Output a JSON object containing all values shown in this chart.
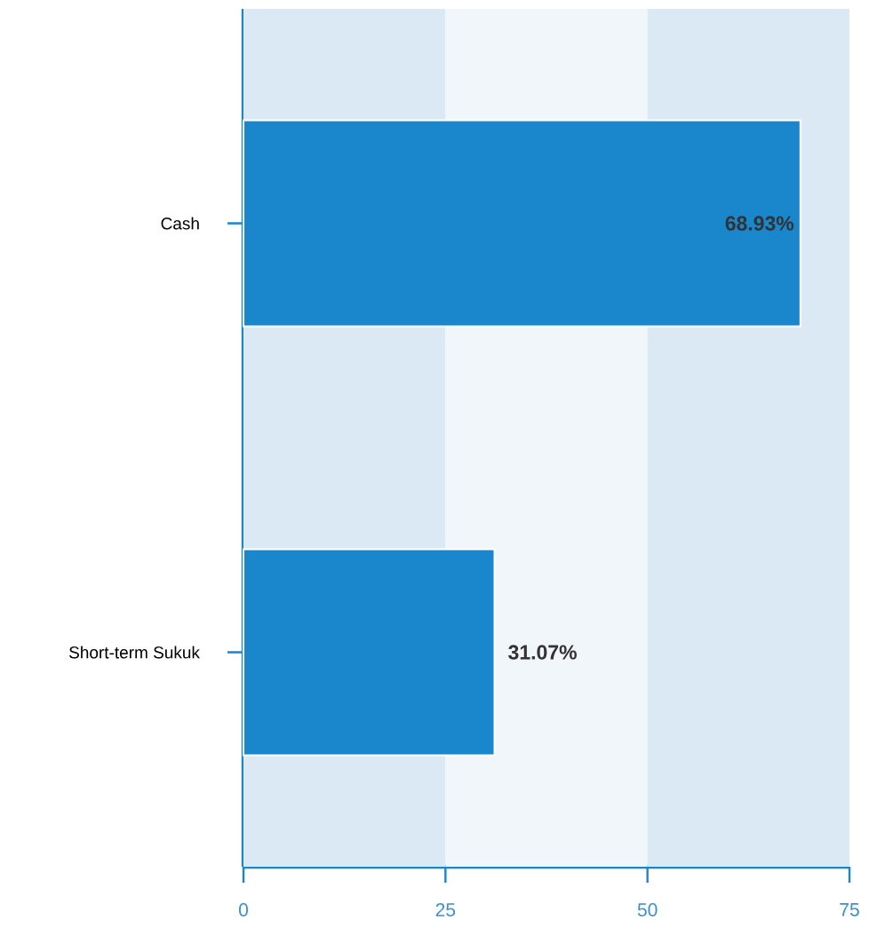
{
  "chart_data": {
    "type": "bar",
    "orientation": "horizontal",
    "categories": [
      "Cash",
      "Short-term Sukuk"
    ],
    "values": [
      68.93,
      31.07
    ],
    "value_labels": [
      "68.93%",
      "31.07%"
    ],
    "color": "#1a87cc",
    "xlim": [
      0,
      75
    ],
    "xticks": [
      0,
      25,
      50,
      75
    ],
    "bands": [
      {
        "axis": "x",
        "from": 0,
        "to": 25,
        "color": "#dbe9f4"
      },
      {
        "axis": "x",
        "from": 25,
        "to": 50,
        "color": "#f1f6fb"
      },
      {
        "axis": "x",
        "from": 50,
        "to": 75,
        "color": "#dbe9f4"
      }
    ]
  }
}
